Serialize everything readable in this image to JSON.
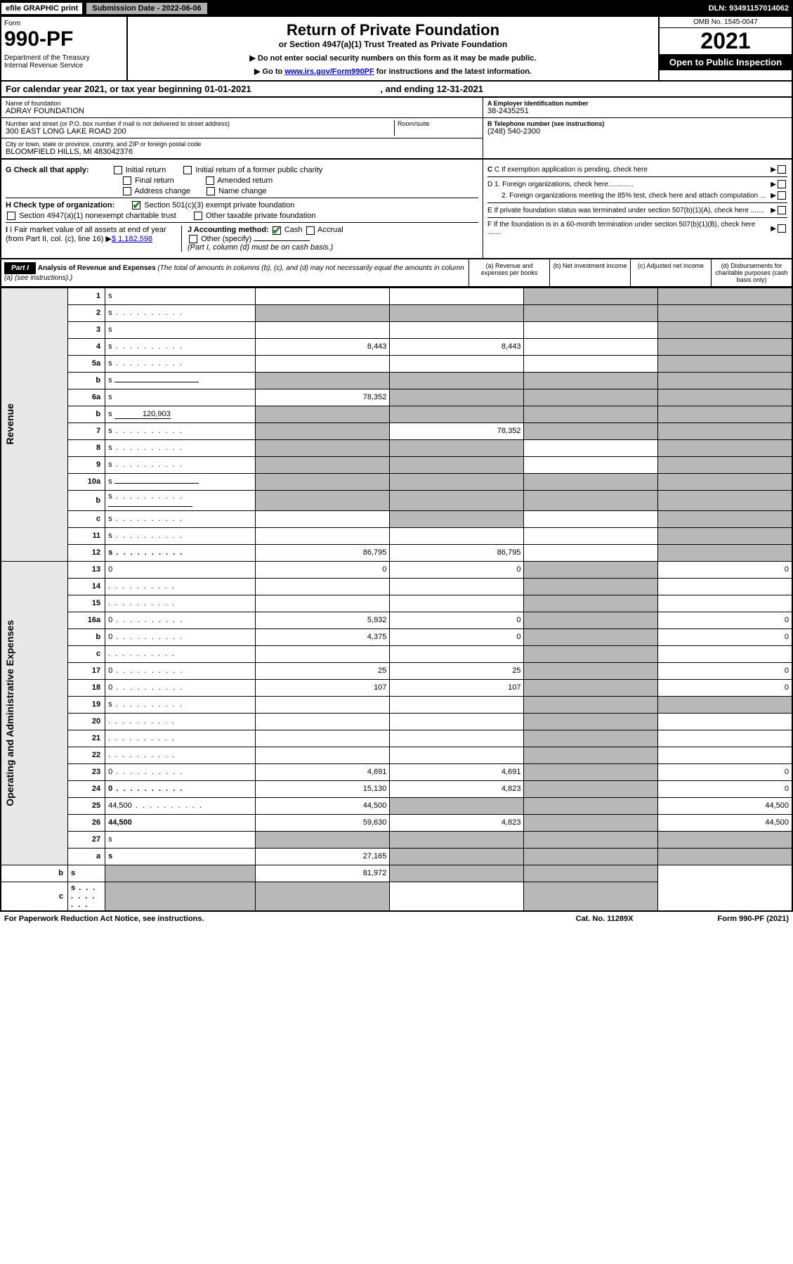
{
  "topbar": {
    "efile": "efile GRAPHIC print",
    "submission": "Submission Date - 2022-06-06",
    "dln": "DLN: 93491157014062"
  },
  "header": {
    "form_label": "Form",
    "form_number": "990-PF",
    "dept": "Department of the Treasury\nInternal Revenue Service",
    "title": "Return of Private Foundation",
    "subtitle": "or Section 4947(a)(1) Trust Treated as Private Foundation",
    "note1": "▶ Do not enter social security numbers on this form as it may be made public.",
    "note2_pre": "▶ Go to ",
    "note2_link": "www.irs.gov/Form990PF",
    "note2_post": " for instructions and the latest information.",
    "omb": "OMB No. 1545-0047",
    "year": "2021",
    "open": "Open to Public Inspection"
  },
  "cal": {
    "text_pre": "For calendar year 2021, or tax year beginning ",
    "begin": "01-01-2021",
    "text_mid": " , and ending ",
    "end": "12-31-2021"
  },
  "info": {
    "name_lbl": "Name of foundation",
    "name": "ADRAY FOUNDATION",
    "addr_lbl": "Number and street (or P.O. box number if mail is not delivered to street address)",
    "addr": "300 EAST LONG LAKE ROAD 200",
    "room_lbl": "Room/suite",
    "city_lbl": "City or town, state or province, country, and ZIP or foreign postal code",
    "city": "BLOOMFIELD HILLS, MI  483042376",
    "ein_lbl": "A Employer identification number",
    "ein": "38-2435251",
    "tel_lbl": "B Telephone number (see instructions)",
    "tel": "(248) 540-2300",
    "c": "C If exemption application is pending, check here",
    "d1": "D 1. Foreign organizations, check here.............",
    "d2": "2. Foreign organizations meeting the 85% test, check here and attach computation ...",
    "e": "E  If private foundation status was terminated under section 507(b)(1)(A), check here .......",
    "f": "F  If the foundation is in a 60-month termination under section 507(b)(1)(B), check here .......",
    "g_lbl": "G Check all that apply:",
    "g_opts": [
      "Initial return",
      "Initial return of a former public charity",
      "Final return",
      "Amended return",
      "Address change",
      "Name change"
    ],
    "h_lbl": "H Check type of organization:",
    "h1": "Section 501(c)(3) exempt private foundation",
    "h2": "Section 4947(a)(1) nonexempt charitable trust",
    "h3": "Other taxable private foundation",
    "i_lbl": "I Fair market value of all assets at end of year (from Part II, col. (c), line 16)",
    "i_val": "$  1,182,598",
    "j_lbl": "J Accounting method:",
    "j_cash": "Cash",
    "j_accrual": "Accrual",
    "j_other": "Other (specify)",
    "j_note": "(Part I, column (d) must be on cash basis.)"
  },
  "part1": {
    "label": "Part I",
    "title": "Analysis of Revenue and Expenses",
    "note": "(The total of amounts in columns (b), (c), and (d) may not necessarily equal the amounts in column (a) (see instructions).)",
    "col_a": "(a)   Revenue and expenses per books",
    "col_b": "(b)   Net investment income",
    "col_c": "(c)   Adjusted net income",
    "col_d": "(d)   Disbursements for charitable purposes (cash basis only)"
  },
  "side": {
    "revenue": "Revenue",
    "expenses": "Operating and Administrative Expenses"
  },
  "rows": [
    {
      "n": "1",
      "d": "s",
      "a": "",
      "b": "",
      "c": "s"
    },
    {
      "n": "2",
      "d": "s",
      "dots": true,
      "a": "s",
      "b": "s",
      "c": "s"
    },
    {
      "n": "3",
      "d": "s",
      "a": "",
      "b": "",
      "c": ""
    },
    {
      "n": "4",
      "d": "s",
      "dots": true,
      "a": "8,443",
      "b": "8,443",
      "c": ""
    },
    {
      "n": "5a",
      "d": "s",
      "dots": true,
      "a": "",
      "b": "",
      "c": ""
    },
    {
      "n": "b",
      "d": "s",
      "inline": true,
      "a": "s",
      "b": "s",
      "c": "s"
    },
    {
      "n": "6a",
      "d": "s",
      "a": "78,352",
      "b": "s",
      "c": "s"
    },
    {
      "n": "b",
      "d": "s",
      "inline_val": "120,903",
      "a": "s",
      "b": "s",
      "c": "s"
    },
    {
      "n": "7",
      "d": "s",
      "dots": true,
      "a": "s",
      "b": "78,352",
      "c": "s"
    },
    {
      "n": "8",
      "d": "s",
      "dots": true,
      "a": "s",
      "b": "s",
      "c": ""
    },
    {
      "n": "9",
      "d": "s",
      "dots": true,
      "a": "s",
      "b": "s",
      "c": ""
    },
    {
      "n": "10a",
      "d": "s",
      "inline": true,
      "a": "s",
      "b": "s",
      "c": "s"
    },
    {
      "n": "b",
      "d": "s",
      "dots": true,
      "inline": true,
      "a": "s",
      "b": "s",
      "c": "s"
    },
    {
      "n": "c",
      "d": "s",
      "dots": true,
      "a": "",
      "b": "s",
      "c": ""
    },
    {
      "n": "11",
      "d": "s",
      "dots": true,
      "a": "",
      "b": "",
      "c": ""
    },
    {
      "n": "12",
      "d": "s",
      "dots": true,
      "bold": true,
      "a": "86,795",
      "b": "86,795",
      "c": ""
    },
    {
      "n": "13",
      "d": "0",
      "a": "0",
      "b": "0",
      "c": "s"
    },
    {
      "n": "14",
      "d": "",
      "dots": true,
      "a": "",
      "b": "",
      "c": "s"
    },
    {
      "n": "15",
      "d": "",
      "dots": true,
      "a": "",
      "b": "",
      "c": "s"
    },
    {
      "n": "16a",
      "d": "0",
      "dots": true,
      "a": "5,932",
      "b": "0",
      "c": "s"
    },
    {
      "n": "b",
      "d": "0",
      "dots": true,
      "a": "4,375",
      "b": "0",
      "c": "s"
    },
    {
      "n": "c",
      "d": "",
      "dots": true,
      "a": "",
      "b": "",
      "c": "s"
    },
    {
      "n": "17",
      "d": "0",
      "dots": true,
      "a": "25",
      "b": "25",
      "c": "s"
    },
    {
      "n": "18",
      "d": "0",
      "dots": true,
      "a": "107",
      "b": "107",
      "c": "s"
    },
    {
      "n": "19",
      "d": "s",
      "dots": true,
      "a": "",
      "b": "",
      "c": "s"
    },
    {
      "n": "20",
      "d": "",
      "dots": true,
      "a": "",
      "b": "",
      "c": "s"
    },
    {
      "n": "21",
      "d": "",
      "dots": true,
      "a": "",
      "b": "",
      "c": "s"
    },
    {
      "n": "22",
      "d": "",
      "dots": true,
      "a": "",
      "b": "",
      "c": "s"
    },
    {
      "n": "23",
      "d": "0",
      "dots": true,
      "a": "4,691",
      "b": "4,691",
      "c": "s"
    },
    {
      "n": "24",
      "d": "0",
      "dots": true,
      "bold": true,
      "a": "15,130",
      "b": "4,823",
      "c": "s"
    },
    {
      "n": "25",
      "d": "44,500",
      "dots": true,
      "a": "44,500",
      "b": "s",
      "c": "s"
    },
    {
      "n": "26",
      "d": "44,500",
      "bold": true,
      "a": "59,630",
      "b": "4,823",
      "c": "s"
    },
    {
      "n": "27",
      "d": "s",
      "a": "s",
      "b": "s",
      "c": "s"
    },
    {
      "n": "a",
      "d": "s",
      "bold": true,
      "a": "27,165",
      "b": "s",
      "c": "s"
    },
    {
      "n": "b",
      "d": "s",
      "bold": true,
      "a": "s",
      "b": "81,972",
      "c": "s"
    },
    {
      "n": "c",
      "d": "s",
      "dots": true,
      "bold": true,
      "a": "s",
      "b": "s",
      "c": ""
    }
  ],
  "footer": {
    "left": "For Paperwork Reduction Act Notice, see instructions.",
    "mid": "Cat. No. 11289X",
    "right": "Form 990-PF (2021)"
  }
}
